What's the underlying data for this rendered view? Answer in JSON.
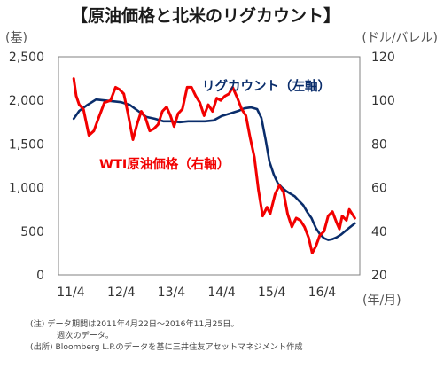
{
  "chart_data": {
    "type": "line",
    "title": "【原油価格と北米のリグカウント】",
    "y_left": {
      "unit": "(基)",
      "ylim": [
        0,
        2500
      ],
      "ticks": [
        "0",
        "500",
        "1,000",
        "1,500",
        "2,000",
        "2,500"
      ]
    },
    "y_right": {
      "unit": "(ドル/バレル)",
      "ylim": [
        20,
        120
      ],
      "ticks": [
        "20",
        "40",
        "60",
        "80",
        "100",
        "120"
      ]
    },
    "x": {
      "unit": "(年/月)",
      "ticks": [
        "11/4",
        "12/4",
        "13/4",
        "14/4",
        "15/4",
        "16/4"
      ],
      "range": [
        "2011-04-22",
        "2016-11-25"
      ]
    },
    "grid": false,
    "legend": "inline labels",
    "series": [
      {
        "name": "リグカウント（左軸）",
        "axis": "left",
        "color": "#0a2d6b",
        "dates": [
          "2011-04-22",
          "2011-06-01",
          "2011-08-01",
          "2011-10-01",
          "2011-12-01",
          "2012-02-01",
          "2012-04-01",
          "2012-06-01",
          "2012-08-01",
          "2012-10-01",
          "2012-12-01",
          "2013-02-01",
          "2013-04-01",
          "2013-06-01",
          "2013-08-01",
          "2013-10-01",
          "2013-12-01",
          "2014-02-01",
          "2014-04-01",
          "2014-06-01",
          "2014-08-01",
          "2014-09-15",
          "2014-11-01",
          "2014-12-15",
          "2015-01-15",
          "2015-02-15",
          "2015-03-15",
          "2015-04-15",
          "2015-05-15",
          "2015-06-15",
          "2015-07-15",
          "2015-08-15",
          "2015-09-15",
          "2015-10-15",
          "2015-11-15",
          "2015-12-15",
          "2016-01-15",
          "2016-02-15",
          "2016-03-15",
          "2016-04-15",
          "2016-05-15",
          "2016-06-15",
          "2016-07-15",
          "2016-08-15",
          "2016-09-15",
          "2016-10-15",
          "2016-11-25"
        ],
        "values": [
          1790,
          1880,
          1950,
          2010,
          2000,
          1990,
          1980,
          1950,
          1880,
          1810,
          1790,
          1760,
          1760,
          1750,
          1760,
          1760,
          1760,
          1770,
          1820,
          1850,
          1880,
          1910,
          1920,
          1900,
          1800,
          1550,
          1300,
          1150,
          1050,
          1000,
          960,
          930,
          900,
          850,
          800,
          720,
          650,
          540,
          470,
          420,
          400,
          410,
          430,
          460,
          500,
          540,
          590
        ]
      },
      {
        "name": "WTI原油価格（右軸）",
        "axis": "right",
        "color": "#f20000",
        "dates": [
          "2011-04-22",
          "2011-05-10",
          "2011-06-01",
          "2011-07-01",
          "2011-08-10",
          "2011-09-15",
          "2011-10-20",
          "2011-12-01",
          "2012-01-15",
          "2012-02-20",
          "2012-03-20",
          "2012-04-20",
          "2012-05-20",
          "2012-06-25",
          "2012-07-25",
          "2012-08-25",
          "2012-09-25",
          "2012-10-25",
          "2012-11-25",
          "2012-12-25",
          "2013-01-25",
          "2013-02-25",
          "2013-03-25",
          "2013-04-20",
          "2013-05-20",
          "2013-06-20",
          "2013-07-25",
          "2013-08-25",
          "2013-09-25",
          "2013-10-25",
          "2013-11-25",
          "2013-12-25",
          "2014-01-25",
          "2014-02-25",
          "2014-03-25",
          "2014-04-25",
          "2014-05-25",
          "2014-06-20",
          "2014-07-25",
          "2014-08-25",
          "2014-09-25",
          "2014-10-25",
          "2014-11-25",
          "2014-12-25",
          "2015-01-25",
          "2015-02-25",
          "2015-03-20",
          "2015-04-25",
          "2015-05-25",
          "2015-06-25",
          "2015-07-25",
          "2015-08-25",
          "2015-09-25",
          "2015-10-25",
          "2015-11-25",
          "2015-12-25",
          "2016-01-20",
          "2016-02-15",
          "2016-03-15",
          "2016-04-15",
          "2016-05-15",
          "2016-06-15",
          "2016-07-15",
          "2016-08-05",
          "2016-08-25",
          "2016-09-25",
          "2016-10-15",
          "2016-11-25"
        ],
        "values": [
          110,
          102,
          98,
          96,
          84,
          86,
          92,
          99,
          100,
          106,
          105,
          103,
          94,
          82,
          89,
          95,
          92,
          86,
          87,
          89,
          95,
          97,
          93,
          88,
          94,
          96,
          106,
          106,
          102,
          99,
          93,
          98,
          95,
          101,
          100,
          102,
          103,
          106,
          101,
          96,
          93,
          83,
          74,
          59,
          47,
          51,
          48,
          57,
          61,
          58,
          48,
          42,
          46,
          45,
          42,
          37,
          30,
          33,
          38,
          40,
          47,
          49,
          44,
          41,
          47,
          45,
          50,
          46
        ]
      }
    ]
  },
  "notes": {
    "line1": "(注) データ期間は2011年4月22日～2016年11月25日。",
    "line2": "週次のデータ。",
    "line3": "(出所) Bloomberg L.P.のデータを基に三井住友アセットマネジメント作成"
  }
}
